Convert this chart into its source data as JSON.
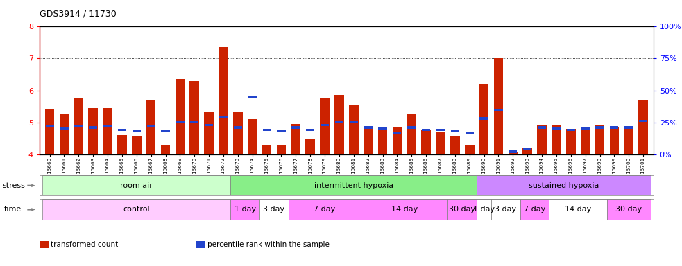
{
  "title": "GDS3914 / 11730",
  "samples": [
    "GSM215660",
    "GSM215661",
    "GSM215662",
    "GSM215663",
    "GSM215664",
    "GSM215665",
    "GSM215666",
    "GSM215667",
    "GSM215668",
    "GSM215669",
    "GSM215670",
    "GSM215671",
    "GSM215672",
    "GSM215673",
    "GSM215674",
    "GSM215675",
    "GSM215676",
    "GSM215677",
    "GSM215678",
    "GSM215679",
    "GSM215680",
    "GSM215681",
    "GSM215682",
    "GSM215683",
    "GSM215684",
    "GSM215685",
    "GSM215686",
    "GSM215687",
    "GSM215688",
    "GSM215689",
    "GSM215690",
    "GSM215691",
    "GSM215692",
    "GSM215693",
    "GSM215694",
    "GSM215695",
    "GSM215696",
    "GSM215697",
    "GSM215698",
    "GSM215699",
    "GSM215700",
    "GSM215701"
  ],
  "transformed_count": [
    5.4,
    5.25,
    5.75,
    5.45,
    5.45,
    4.6,
    4.55,
    5.7,
    4.3,
    6.35,
    6.3,
    5.35,
    7.35,
    5.35,
    5.1,
    4.3,
    4.3,
    4.95,
    4.5,
    5.75,
    5.85,
    5.55,
    4.85,
    4.85,
    4.85,
    5.25,
    4.75,
    4.7,
    4.55,
    4.3,
    6.2,
    7.0,
    4.05,
    4.2,
    4.9,
    4.9,
    4.8,
    4.8,
    4.9,
    4.85,
    4.85,
    5.7
  ],
  "percentile_rank": [
    22,
    20,
    22,
    21,
    22,
    19,
    18,
    22,
    18,
    25,
    25,
    23,
    29,
    21,
    45,
    19,
    18,
    21,
    19,
    23,
    25,
    25,
    21,
    20,
    17,
    21,
    19,
    19,
    18,
    17,
    28,
    35,
    2,
    4,
    21,
    20,
    19,
    20,
    21,
    21,
    21,
    26
  ],
  "ylim": [
    4.0,
    8.0
  ],
  "yticks": [
    4,
    5,
    6,
    7,
    8
  ],
  "yticks_right": [
    0,
    25,
    50,
    75,
    100
  ],
  "y_right_labels": [
    "0%",
    "25%",
    "50%",
    "75%",
    "100%"
  ],
  "bar_color": "#cc2200",
  "blue_color": "#2244cc",
  "baseline": 4.0,
  "stress_groups": [
    {
      "label": "room air",
      "start": 0,
      "end": 13,
      "color": "#ccffcc"
    },
    {
      "label": "intermittent hypoxia",
      "start": 13,
      "end": 30,
      "color": "#88ee88"
    },
    {
      "label": "sustained hypoxia",
      "start": 30,
      "end": 42,
      "color": "#cc88ff"
    }
  ],
  "time_groups": [
    {
      "label": "control",
      "start": 0,
      "end": 13,
      "color": "#ffccff"
    },
    {
      "label": "1 day",
      "start": 13,
      "end": 15,
      "color": "#ff88ff"
    },
    {
      "label": "3 day",
      "start": 15,
      "end": 17,
      "color": "#ffffff"
    },
    {
      "label": "7 day",
      "start": 17,
      "end": 22,
      "color": "#ff88ff"
    },
    {
      "label": "14 day",
      "start": 22,
      "end": 28,
      "color": "#ff88ff"
    },
    {
      "label": "30 day",
      "start": 28,
      "end": 30,
      "color": "#ff88ff"
    },
    {
      "label": "1 day",
      "start": 30,
      "end": 31,
      "color": "#ffffff"
    },
    {
      "label": "3 day",
      "start": 31,
      "end": 33,
      "color": "#ffffff"
    },
    {
      "label": "7 day",
      "start": 33,
      "end": 35,
      "color": "#ff88ff"
    },
    {
      "label": "14 day",
      "start": 35,
      "end": 39,
      "color": "#ffffff"
    },
    {
      "label": "30 day",
      "start": 39,
      "end": 42,
      "color": "#ff88ff"
    }
  ],
  "legend_items": [
    {
      "label": "transformed count",
      "color": "#cc2200"
    },
    {
      "label": "percentile rank within the sample",
      "color": "#2244cc"
    }
  ]
}
